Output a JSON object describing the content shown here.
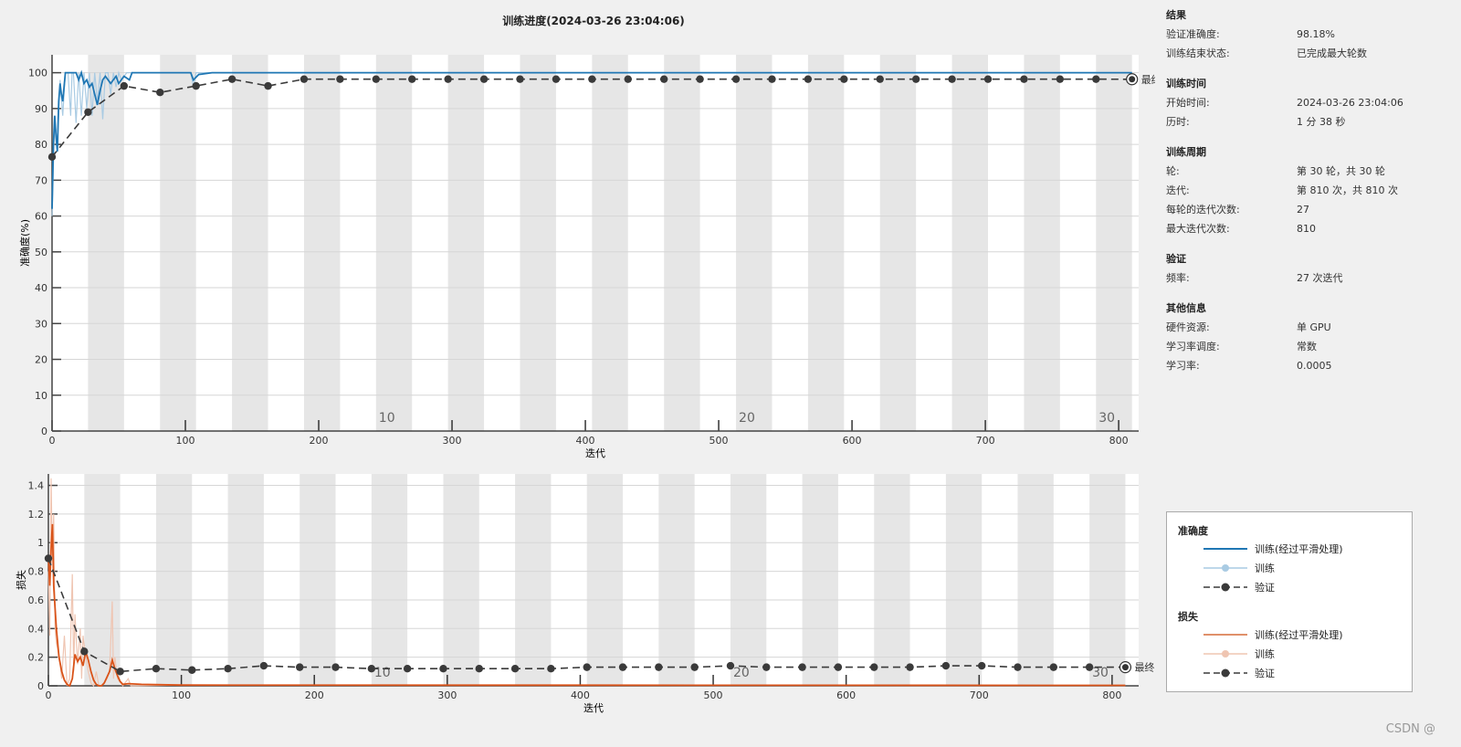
{
  "title": "训练进度(2024-03-26 23:04:06)",
  "colors": {
    "accuracy_smoothed": "#1f77b4",
    "accuracy_raw": "#a9cbe3",
    "loss_smoothed": "#d95319",
    "loss_raw": "#efc5b2",
    "validation": "#3a3a3a",
    "epoch_band": "#e6e6e6"
  },
  "chart_data": [
    {
      "type": "line",
      "ylabel": "准确度(%)",
      "xlabel": "迭代",
      "xlim": [
        0,
        815
      ],
      "ylim": [
        0,
        105
      ],
      "xticks": [
        0,
        100,
        200,
        300,
        400,
        500,
        600,
        700,
        800
      ],
      "yticks": [
        0,
        10,
        20,
        30,
        40,
        50,
        60,
        70,
        80,
        90,
        100
      ],
      "grid": "horizontal",
      "iterations_per_epoch": 27,
      "epoch_labels": [
        10,
        20,
        30
      ],
      "final_label": "最终",
      "series": [
        {
          "name": "训练(经过平滑处理)",
          "x": [
            0,
            1,
            2,
            3,
            4,
            5,
            6,
            7,
            8,
            10,
            14,
            18,
            20,
            22,
            24,
            26,
            28,
            30,
            32,
            34,
            36,
            38,
            40,
            44,
            48,
            50,
            54,
            58,
            60,
            80,
            100,
            104,
            106,
            110,
            120,
            810
          ],
          "y": [
            62,
            80,
            88,
            82,
            78,
            92,
            97,
            94,
            92,
            100,
            100,
            100,
            98,
            100,
            97,
            98,
            96,
            97,
            94,
            91,
            95,
            98,
            99,
            97,
            99,
            97,
            99,
            98,
            100,
            100,
            100,
            100,
            98,
            99.5,
            100,
            100
          ]
        },
        {
          "name": "训练",
          "x": [
            0,
            2,
            4,
            6,
            8,
            10,
            12,
            14,
            15,
            16,
            18,
            20,
            22,
            24,
            26,
            28,
            30,
            32,
            34,
            36,
            38,
            40,
            42,
            44,
            46,
            48,
            50,
            52,
            56,
            60,
            104,
            106,
            108,
            810
          ],
          "y": [
            60,
            87,
            80,
            98,
            88,
            100,
            100,
            88,
            100,
            100,
            86,
            100,
            88,
            100,
            90,
            100,
            88,
            100,
            92,
            100,
            87,
            100,
            100,
            94,
            100,
            96,
            100,
            98,
            100,
            100,
            100,
            96,
            100,
            100
          ]
        },
        {
          "name": "验证",
          "x": [
            0,
            27,
            54,
            81,
            108,
            135,
            162,
            189,
            216,
            243,
            270,
            297,
            324,
            351,
            378,
            405,
            432,
            459,
            486,
            513,
            540,
            567,
            594,
            621,
            648,
            675,
            702,
            729,
            756,
            783,
            810
          ],
          "y": [
            76.5,
            89.0,
            96.3,
            94.5,
            96.3,
            98.2,
            96.3,
            98.2,
            98.2,
            98.2,
            98.2,
            98.2,
            98.2,
            98.2,
            98.2,
            98.2,
            98.2,
            98.2,
            98.2,
            98.2,
            98.2,
            98.2,
            98.2,
            98.2,
            98.2,
            98.2,
            98.2,
            98.2,
            98.2,
            98.2,
            98.18
          ]
        }
      ]
    },
    {
      "type": "line",
      "ylabel": "损失",
      "xlabel": "迭代",
      "xlim": [
        0,
        820
      ],
      "ylim": [
        0,
        1.48
      ],
      "xticks": [
        0,
        100,
        200,
        300,
        400,
        500,
        600,
        700,
        800
      ],
      "yticks": [
        0,
        0.2,
        0.4,
        0.6,
        0.8,
        1,
        1.2,
        1.4
      ],
      "grid": "horizontal",
      "iterations_per_epoch": 27,
      "epoch_labels": [
        10,
        20,
        30
      ],
      "final_label": "最终",
      "series": [
        {
          "name": "训练(经过平滑处理)",
          "x": [
            0,
            1,
            2,
            3,
            4,
            6,
            8,
            10,
            12,
            14,
            16,
            18,
            20,
            22,
            24,
            26,
            28,
            30,
            32,
            34,
            36,
            38,
            40,
            42,
            44,
            46,
            48,
            50,
            52,
            54,
            56,
            60,
            70,
            80,
            100,
            810
          ],
          "y": [
            0.9,
            0.7,
            0.95,
            1.13,
            0.7,
            0.4,
            0.2,
            0.1,
            0.04,
            0.01,
            0,
            0.05,
            0.22,
            0.17,
            0.2,
            0.14,
            0.24,
            0.18,
            0.1,
            0.04,
            0.01,
            0,
            0,
            0.02,
            0.06,
            0.1,
            0.18,
            0.12,
            0.07,
            0.03,
            0.01,
            0.015,
            0.01,
            0.008,
            0.005,
            0.003
          ]
        },
        {
          "name": "训练",
          "x": [
            0,
            1,
            2,
            3,
            4,
            5,
            6,
            8,
            10,
            12,
            14,
            16,
            18,
            19,
            20,
            22,
            24,
            25,
            26,
            28,
            30,
            32,
            34,
            36,
            38,
            40,
            44,
            46,
            48,
            49,
            50,
            52,
            56,
            60,
            62,
            100,
            810
          ],
          "y": [
            0.8,
            0.35,
            1.45,
            0.9,
            1.2,
            0.4,
            0.3,
            0.22,
            0.05,
            0.35,
            0,
            0.05,
            0.78,
            0.1,
            0.5,
            0.15,
            0.4,
            0.05,
            0.35,
            0.2,
            0.1,
            0.02,
            0,
            0.1,
            0,
            0,
            0.05,
            0.1,
            0.59,
            0.05,
            0.2,
            0.05,
            0,
            0.05,
            0,
            0.005,
            0.002
          ]
        },
        {
          "name": "验证",
          "x": [
            0,
            27,
            54,
            81,
            108,
            135,
            162,
            189,
            216,
            243,
            270,
            297,
            324,
            351,
            378,
            405,
            432,
            459,
            486,
            513,
            540,
            567,
            594,
            621,
            648,
            675,
            702,
            729,
            756,
            783,
            810
          ],
          "y": [
            0.89,
            0.24,
            0.1,
            0.12,
            0.11,
            0.12,
            0.14,
            0.13,
            0.13,
            0.12,
            0.12,
            0.12,
            0.12,
            0.12,
            0.12,
            0.13,
            0.13,
            0.13,
            0.13,
            0.14,
            0.13,
            0.13,
            0.13,
            0.13,
            0.13,
            0.14,
            0.14,
            0.13,
            0.13,
            0.13,
            0.13
          ]
        }
      ]
    }
  ],
  "info": {
    "sections": [
      {
        "title": "结果",
        "rows": [
          {
            "k": "验证准确度:",
            "v": "98.18%"
          },
          {
            "k": "训练结束状态:",
            "v": "已完成最大轮数"
          }
        ]
      },
      {
        "title": "训练时间",
        "rows": [
          {
            "k": "开始时间:",
            "v": "2024-03-26 23:04:06"
          },
          {
            "k": "历时:",
            "v": "1 分 38 秒"
          }
        ]
      },
      {
        "title": "训练周期",
        "rows": [
          {
            "k": "轮:",
            "v": "第 30 轮，共 30 轮"
          },
          {
            "k": "迭代:",
            "v": "第 810 次，共 810 次"
          },
          {
            "k": "每轮的迭代次数:",
            "v": "27"
          },
          {
            "k": "最大迭代次数:",
            "v": "810"
          }
        ]
      },
      {
        "title": "验证",
        "rows": [
          {
            "k": "频率:",
            "v": "27 次迭代"
          }
        ]
      },
      {
        "title": "其他信息",
        "rows": [
          {
            "k": "硬件资源:",
            "v": "单 GPU"
          },
          {
            "k": "学习率调度:",
            "v": "常数"
          },
          {
            "k": "学习率:",
            "v": "0.0005"
          }
        ]
      }
    ]
  },
  "legend": {
    "accuracy_title": "准确度",
    "loss_title": "损失",
    "smoothed": "训练(经过平滑处理)",
    "raw": "训练",
    "validation": "验证"
  },
  "watermark": "CSDN @"
}
